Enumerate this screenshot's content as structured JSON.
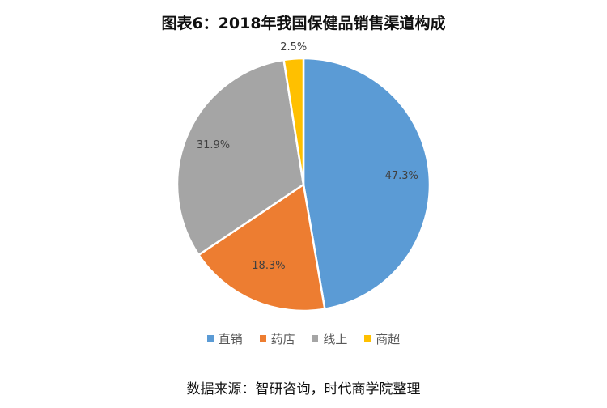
{
  "chart_data": {
    "type": "pie",
    "title": "图表6：2018年我国保健品销售渠道构成",
    "categories": [
      "直销",
      "药店",
      "线上",
      "商超"
    ],
    "values": [
      47.3,
      18.3,
      31.9,
      2.5
    ],
    "value_labels": [
      "47.3%",
      "18.3%",
      "31.9%",
      "2.5%"
    ],
    "colors": [
      "#5B9BD5",
      "#ED7D31",
      "#A5A5A5",
      "#FFC000"
    ],
    "legend_position": "bottom",
    "start_angle": "12 o'clock, clockwise"
  },
  "source": "数据来源：智研咨询，时代商学院整理"
}
